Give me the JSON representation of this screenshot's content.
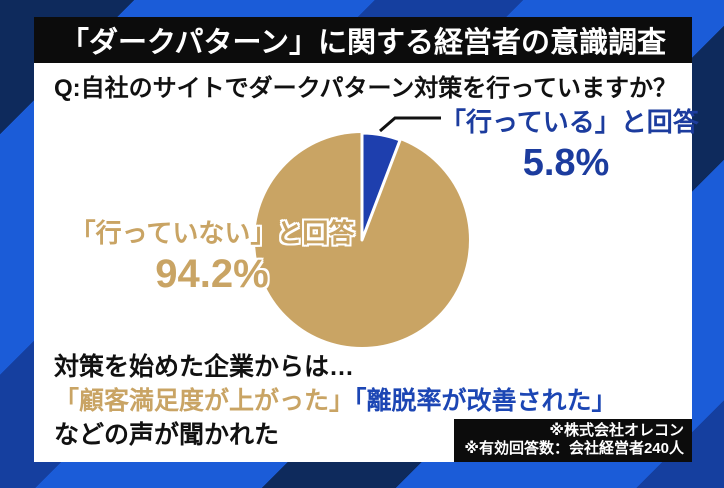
{
  "header": {
    "title": "「ダークパターン」に関する経営者の意識調査"
  },
  "question": "Q:自社のサイトでダークパターン対策を行っていますか？",
  "chart_data": {
    "type": "pie",
    "title": "「ダークパターン」に関する経営者の意識調査",
    "question": "Q:自社のサイトでダークパターン対策を行っていますか？",
    "labels": [
      "「行っていない」と回答",
      "「行っている」と回答"
    ],
    "values": [
      94.2,
      5.8
    ],
    "value_labels": [
      "94.2%",
      "5.8%"
    ],
    "colors": [
      "#c9a464",
      "#1e3fae"
    ],
    "start_angle_deg": -90,
    "direction": "clockwise",
    "slice_gap_color": "#ffffff",
    "legend_position": "callout-labels"
  },
  "pie_labels": {
    "no": {
      "label": "「行っていない」と回答",
      "value": "94.2%"
    },
    "yes": {
      "label": "「行っている」と回答",
      "value": "5.8%"
    }
  },
  "insight": {
    "intro": "対策を始めた企業からは…",
    "quote_gold": "「顧客満足度が上がった」",
    "quote_blue": "「離脱率が改善された」",
    "outro": "などの声が聞かれた"
  },
  "footnote": {
    "source": "※株式会社オレコン",
    "respondents": "※有効回答数：会社経営者240人"
  },
  "colors": {
    "gold": "#c9a464",
    "pie_blue": "#1e3fae",
    "label_blue": "#1c3c9e",
    "quote_blue": "#1c46b4",
    "bg_bright_blue": "#1b5cd8",
    "bg_royal_blue": "#153f9f",
    "bg_navy": "#0e2a5c",
    "bar_black": "#0c0c0c",
    "panel_white": "#ffffff"
  }
}
